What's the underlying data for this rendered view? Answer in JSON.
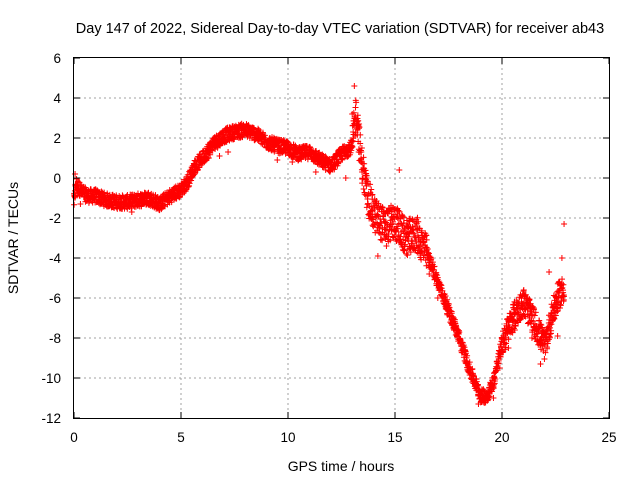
{
  "chart_data": {
    "type": "scatter",
    "title": "Day 147 of 2022, Sidereal Day-to-day VTEC variation (SDTVAR) for receiver ab43",
    "xlabel": "GPS time / hours",
    "ylabel": "SDTVAR / TECUs",
    "xlim": [
      0,
      25
    ],
    "ylim": [
      -12,
      6
    ],
    "xticks": [
      0,
      5,
      10,
      15,
      20,
      25
    ],
    "yticks": [
      -12,
      -10,
      -8,
      -6,
      -4,
      -2,
      0,
      2,
      4,
      6
    ],
    "xtick_labels": [
      "0",
      "5",
      "10",
      "15",
      "20",
      "25"
    ],
    "ytick_labels": [
      "-12",
      "-10",
      "-8",
      "-6",
      "-4",
      "-2",
      "0",
      "2",
      "4",
      "6"
    ],
    "grid": true,
    "marker": "+",
    "series": [
      {
        "name": "SDTVAR ab43",
        "color": "#ff0000",
        "trend": [
          [
            0.0,
            -1.2
          ],
          [
            0.1,
            -0.3
          ],
          [
            0.3,
            -0.6
          ],
          [
            0.6,
            -0.9
          ],
          [
            1.0,
            -0.9
          ],
          [
            1.5,
            -1.1
          ],
          [
            2.0,
            -1.2
          ],
          [
            2.5,
            -1.2
          ],
          [
            3.0,
            -1.1
          ],
          [
            3.5,
            -1.0
          ],
          [
            4.0,
            -1.3
          ],
          [
            4.5,
            -0.9
          ],
          [
            5.0,
            -0.6
          ],
          [
            5.3,
            -0.2
          ],
          [
            5.6,
            0.5
          ],
          [
            6.0,
            1.0
          ],
          [
            6.5,
            1.7
          ],
          [
            7.0,
            2.1
          ],
          [
            7.5,
            2.3
          ],
          [
            8.0,
            2.4
          ],
          [
            8.5,
            2.2
          ],
          [
            9.0,
            1.8
          ],
          [
            9.5,
            1.6
          ],
          [
            10.0,
            1.5
          ],
          [
            10.5,
            1.2
          ],
          [
            11.0,
            1.3
          ],
          [
            11.5,
            0.9
          ],
          [
            12.0,
            0.6
          ],
          [
            12.5,
            1.2
          ],
          [
            13.0,
            1.6
          ],
          [
            13.2,
            3.4
          ],
          [
            13.4,
            1.0
          ],
          [
            13.7,
            -0.8
          ],
          [
            14.0,
            -1.8
          ],
          [
            14.5,
            -2.4
          ],
          [
            15.0,
            -2.2
          ],
          [
            15.5,
            -3.0
          ],
          [
            16.0,
            -2.8
          ],
          [
            16.5,
            -3.8
          ],
          [
            17.0,
            -5.2
          ],
          [
            17.5,
            -6.6
          ],
          [
            18.0,
            -8.0
          ],
          [
            18.5,
            -9.6
          ],
          [
            19.0,
            -10.9
          ],
          [
            19.3,
            -10.9
          ],
          [
            19.6,
            -10.2
          ],
          [
            20.0,
            -8.3
          ],
          [
            20.5,
            -7.0
          ],
          [
            21.0,
            -6.2
          ],
          [
            21.5,
            -7.2
          ],
          [
            22.0,
            -8.4
          ],
          [
            22.3,
            -7.0
          ],
          [
            22.6,
            -6.0
          ],
          [
            22.9,
            -5.5
          ]
        ],
        "extra_points": [
          [
            13.1,
            4.6
          ],
          [
            13.0,
            3.2
          ],
          [
            13.3,
            2.6
          ],
          [
            12.7,
            0.0
          ],
          [
            11.9,
            0.4
          ],
          [
            11.3,
            0.3
          ],
          [
            10.2,
            0.8
          ],
          [
            9.5,
            0.9
          ],
          [
            7.2,
            1.3
          ],
          [
            6.8,
            1.1
          ],
          [
            6.3,
            1.0
          ],
          [
            4.7,
            -0.6
          ],
          [
            4.2,
            -0.9
          ],
          [
            4.1,
            -1.5
          ],
          [
            2.7,
            -1.7
          ],
          [
            1.0,
            -0.7
          ],
          [
            0.3,
            -1.3
          ],
          [
            0.05,
            0.2
          ],
          [
            14.2,
            -3.9
          ],
          [
            14.6,
            -3.4
          ],
          [
            15.2,
            0.4
          ],
          [
            15.0,
            -1.6
          ],
          [
            15.6,
            -2.4
          ],
          [
            16.2,
            -3.2
          ],
          [
            16.6,
            -4.8
          ],
          [
            16.9,
            -4.8
          ],
          [
            17.0,
            -6.0
          ],
          [
            21.4,
            -8.0
          ],
          [
            21.8,
            -9.3
          ],
          [
            22.2,
            -4.7
          ],
          [
            22.4,
            -6.5
          ],
          [
            22.8,
            -4.0
          ],
          [
            22.9,
            -2.3
          ],
          [
            22.6,
            -7.9
          ],
          [
            20.3,
            -8.5
          ],
          [
            20.6,
            -7.6
          ],
          [
            21.2,
            -6.8
          ],
          [
            19.6,
            -11.0
          ],
          [
            18.9,
            -11.3
          ],
          [
            19.9,
            -9.5
          ]
        ]
      }
    ]
  }
}
